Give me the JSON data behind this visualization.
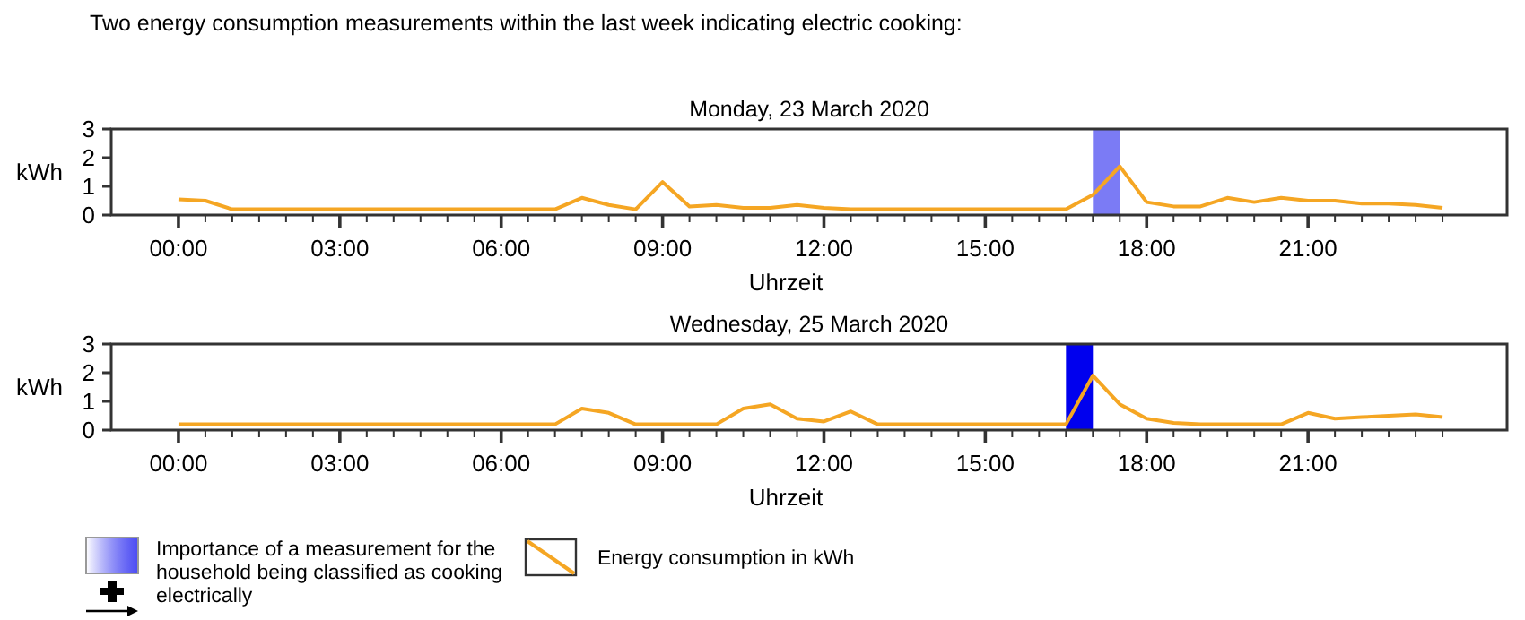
{
  "chart_data": [
    {
      "type": "line",
      "title": "Two energy consumption measurements within the last week indicating electric cooking:",
      "subtitle": "Monday, 23 March 2020",
      "xlabel": "Uhrzeit",
      "ylabel": "kWh",
      "x": [
        0,
        0.5,
        1,
        1.5,
        2,
        2.5,
        3,
        3.5,
        4,
        4.5,
        5,
        5.5,
        6,
        6.5,
        7,
        7.5,
        8,
        8.5,
        9,
        9.5,
        10,
        10.5,
        11,
        11.5,
        12,
        12.5,
        13,
        13.5,
        14,
        14.5,
        15,
        15.5,
        16,
        16.5,
        17,
        17.5,
        18,
        18.5,
        19,
        19.5,
        20,
        20.5,
        21,
        21.5,
        22,
        22.5,
        23,
        23.5
      ],
      "series": [
        {
          "color": "#f5a623",
          "values": [
            0.55,
            0.5,
            0.2,
            0.2,
            0.2,
            0.2,
            0.2,
            0.2,
            0.2,
            0.2,
            0.2,
            0.2,
            0.2,
            0.2,
            0.2,
            0.6,
            0.35,
            0.2,
            1.15,
            0.3,
            0.35,
            0.25,
            0.25,
            0.35,
            0.25,
            0.2,
            0.2,
            0.2,
            0.2,
            0.2,
            0.2,
            0.2,
            0.2,
            0.2,
            0.7,
            1.7,
            0.45,
            0.3,
            0.3,
            0.6,
            0.45,
            0.6,
            0.5,
            0.5,
            0.4,
            0.4,
            0.35,
            0.25
          ]
        }
      ],
      "bands": [
        {
          "axis": "x",
          "from": 17,
          "to": 17.5,
          "color": "#7b7bf5"
        }
      ],
      "xlim": [
        -1.25,
        24.7
      ],
      "ylim": [
        0,
        3
      ],
      "yticks": [
        0,
        1,
        2,
        3
      ],
      "xticks": [
        {
          "value": 0,
          "label": "00:00"
        },
        {
          "value": 0.5,
          "label": null
        },
        {
          "value": 1,
          "label": null
        },
        {
          "value": 1.5,
          "label": null
        },
        {
          "value": 2,
          "label": null
        },
        {
          "value": 2.5,
          "label": null
        },
        {
          "value": 3,
          "label": "03:00"
        },
        {
          "value": 3.5,
          "label": null
        },
        {
          "value": 4,
          "label": null
        },
        {
          "value": 4.5,
          "label": null
        },
        {
          "value": 5,
          "label": null
        },
        {
          "value": 5.5,
          "label": null
        },
        {
          "value": 6,
          "label": "06:00"
        },
        {
          "value": 6.5,
          "label": null
        },
        {
          "value": 7,
          "label": null
        },
        {
          "value": 7.5,
          "label": null
        },
        {
          "value": 8,
          "label": null
        },
        {
          "value": 8.5,
          "label": null
        },
        {
          "value": 9,
          "label": "09:00"
        },
        {
          "value": 9.5,
          "label": null
        },
        {
          "value": 10,
          "label": null
        },
        {
          "value": 10.5,
          "label": null
        },
        {
          "value": 11,
          "label": null
        },
        {
          "value": 11.5,
          "label": null
        },
        {
          "value": 12,
          "label": "12:00"
        },
        {
          "value": 12.5,
          "label": null
        },
        {
          "value": 13,
          "label": null
        },
        {
          "value": 13.5,
          "label": null
        },
        {
          "value": 14,
          "label": null
        },
        {
          "value": 14.5,
          "label": null
        },
        {
          "value": 15,
          "label": "15:00"
        },
        {
          "value": 15.5,
          "label": null
        },
        {
          "value": 16,
          "label": null
        },
        {
          "value": 16.5,
          "label": null
        },
        {
          "value": 17,
          "label": null
        },
        {
          "value": 17.5,
          "label": null
        },
        {
          "value": 18,
          "label": "18:00"
        },
        {
          "value": 18.5,
          "label": null
        },
        {
          "value": 19,
          "label": null
        },
        {
          "value": 19.5,
          "label": null
        },
        {
          "value": 20,
          "label": null
        },
        {
          "value": 20.5,
          "label": null
        },
        {
          "value": 21,
          "label": "21:00"
        },
        {
          "value": 21.5,
          "label": null
        },
        {
          "value": 22,
          "label": null
        },
        {
          "value": 22.5,
          "label": null
        },
        {
          "value": 23,
          "label": null
        },
        {
          "value": 23.5,
          "label": null
        }
      ],
      "grid": false,
      "marker": "none",
      "line_style": "solid"
    },
    {
      "type": "line",
      "title": "Wednesday, 25 March 2020",
      "xlabel": "Uhrzeit",
      "ylabel": "kWh",
      "x": [
        0,
        0.5,
        1,
        1.5,
        2,
        2.5,
        3,
        3.5,
        4,
        4.5,
        5,
        5.5,
        6,
        6.5,
        7,
        7.5,
        8,
        8.5,
        9,
        9.5,
        10,
        10.5,
        11,
        11.5,
        12,
        12.5,
        13,
        13.5,
        14,
        14.5,
        15,
        15.5,
        16,
        16.5,
        17,
        17.5,
        18,
        18.5,
        19,
        19.5,
        20,
        20.5,
        21,
        21.5,
        22,
        22.5,
        23,
        23.5
      ],
      "series": [
        {
          "name": "Energy consumption in kWh",
          "color": "#f5a623",
          "values": [
            0.2,
            0.2,
            0.2,
            0.2,
            0.2,
            0.2,
            0.2,
            0.2,
            0.2,
            0.2,
            0.2,
            0.2,
            0.2,
            0.2,
            0.2,
            0.75,
            0.6,
            0.2,
            0.2,
            0.2,
            0.2,
            0.75,
            0.9,
            0.4,
            0.3,
            0.65,
            0.2,
            0.2,
            0.2,
            0.2,
            0.2,
            0.2,
            0.2,
            0.2,
            1.9,
            0.9,
            0.4,
            0.25,
            0.2,
            0.2,
            0.2,
            0.2,
            0.6,
            0.4,
            0.45,
            0.5,
            0.55,
            0.45
          ]
        }
      ],
      "bands": [
        {
          "axis": "x",
          "from": 16.5,
          "to": 17,
          "color": "#0000ee",
          "label": "Importance of a measurement for the household being classified as cooking electrically"
        }
      ],
      "xlim": [
        -1.25,
        24.7
      ],
      "ylim": [
        0,
        3
      ],
      "yticks": [
        0,
        1,
        2,
        3
      ],
      "xticks": [
        {
          "value": 0,
          "label": "00:00"
        },
        {
          "value": 0.5,
          "label": null
        },
        {
          "value": 1,
          "label": null
        },
        {
          "value": 1.5,
          "label": null
        },
        {
          "value": 2,
          "label": null
        },
        {
          "value": 2.5,
          "label": null
        },
        {
          "value": 3,
          "label": "03:00"
        },
        {
          "value": 3.5,
          "label": null
        },
        {
          "value": 4,
          "label": null
        },
        {
          "value": 4.5,
          "label": null
        },
        {
          "value": 5,
          "label": null
        },
        {
          "value": 5.5,
          "label": null
        },
        {
          "value": 6,
          "label": "06:00"
        },
        {
          "value": 6.5,
          "label": null
        },
        {
          "value": 7,
          "label": null
        },
        {
          "value": 7.5,
          "label": null
        },
        {
          "value": 8,
          "label": null
        },
        {
          "value": 8.5,
          "label": null
        },
        {
          "value": 9,
          "label": "09:00"
        },
        {
          "value": 9.5,
          "label": null
        },
        {
          "value": 10,
          "label": null
        },
        {
          "value": 10.5,
          "label": null
        },
        {
          "value": 11,
          "label": null
        },
        {
          "value": 11.5,
          "label": null
        },
        {
          "value": 12,
          "label": "12:00"
        },
        {
          "value": 12.5,
          "label": null
        },
        {
          "value": 13,
          "label": null
        },
        {
          "value": 13.5,
          "label": null
        },
        {
          "value": 14,
          "label": null
        },
        {
          "value": 14.5,
          "label": null
        },
        {
          "value": 15,
          "label": "15:00"
        },
        {
          "value": 15.5,
          "label": null
        },
        {
          "value": 16,
          "label": null
        },
        {
          "value": 16.5,
          "label": null
        },
        {
          "value": 17,
          "label": null
        },
        {
          "value": 17.5,
          "label": null
        },
        {
          "value": 18,
          "label": "18:00"
        },
        {
          "value": 18.5,
          "label": null
        },
        {
          "value": 19,
          "label": null
        },
        {
          "value": 19.5,
          "label": null
        },
        {
          "value": 20,
          "label": null
        },
        {
          "value": 20.5,
          "label": null
        },
        {
          "value": 21,
          "label": "21:00"
        },
        {
          "value": 21.5,
          "label": null
        },
        {
          "value": 22,
          "label": null
        },
        {
          "value": 22.5,
          "label": null
        },
        {
          "value": 23,
          "label": null
        },
        {
          "value": 23.5,
          "label": null
        }
      ],
      "grid": false,
      "marker": "none",
      "line_style": "solid",
      "legend": "bottom"
    }
  ]
}
